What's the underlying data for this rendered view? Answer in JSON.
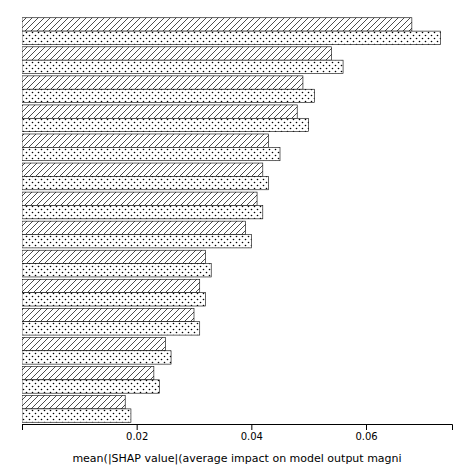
{
  "chart_data": {
    "type": "bar",
    "orientation": "horizontal",
    "xlabel": "mean(|SHAP value|(average impact on model output magni",
    "categories": [
      null,
      null,
      null,
      null,
      null,
      null,
      null,
      null,
      null,
      null,
      null,
      null,
      null,
      null
    ],
    "series": [
      {
        "color": "white",
        "values": [
          0.068,
          0.054,
          0.049,
          0.048,
          0.043,
          0.042,
          0.041,
          0.039,
          0.032,
          0.031,
          0.03,
          0.025,
          0.023,
          0.018
        ]
      },
      {
        "color": "white",
        "values": [
          0.073,
          0.056,
          0.051,
          0.05,
          0.045,
          0.043,
          0.042,
          0.04,
          0.033,
          0.032,
          0.031,
          0.026,
          0.024,
          0.019
        ]
      }
    ],
    "xlim": [
      0,
      0.075
    ],
    "xticks": [
      {
        "value": 0.0,
        "label": ""
      },
      0.02,
      0.04,
      0.06
    ],
    "tick_labels": "x",
    "grid": false
  }
}
